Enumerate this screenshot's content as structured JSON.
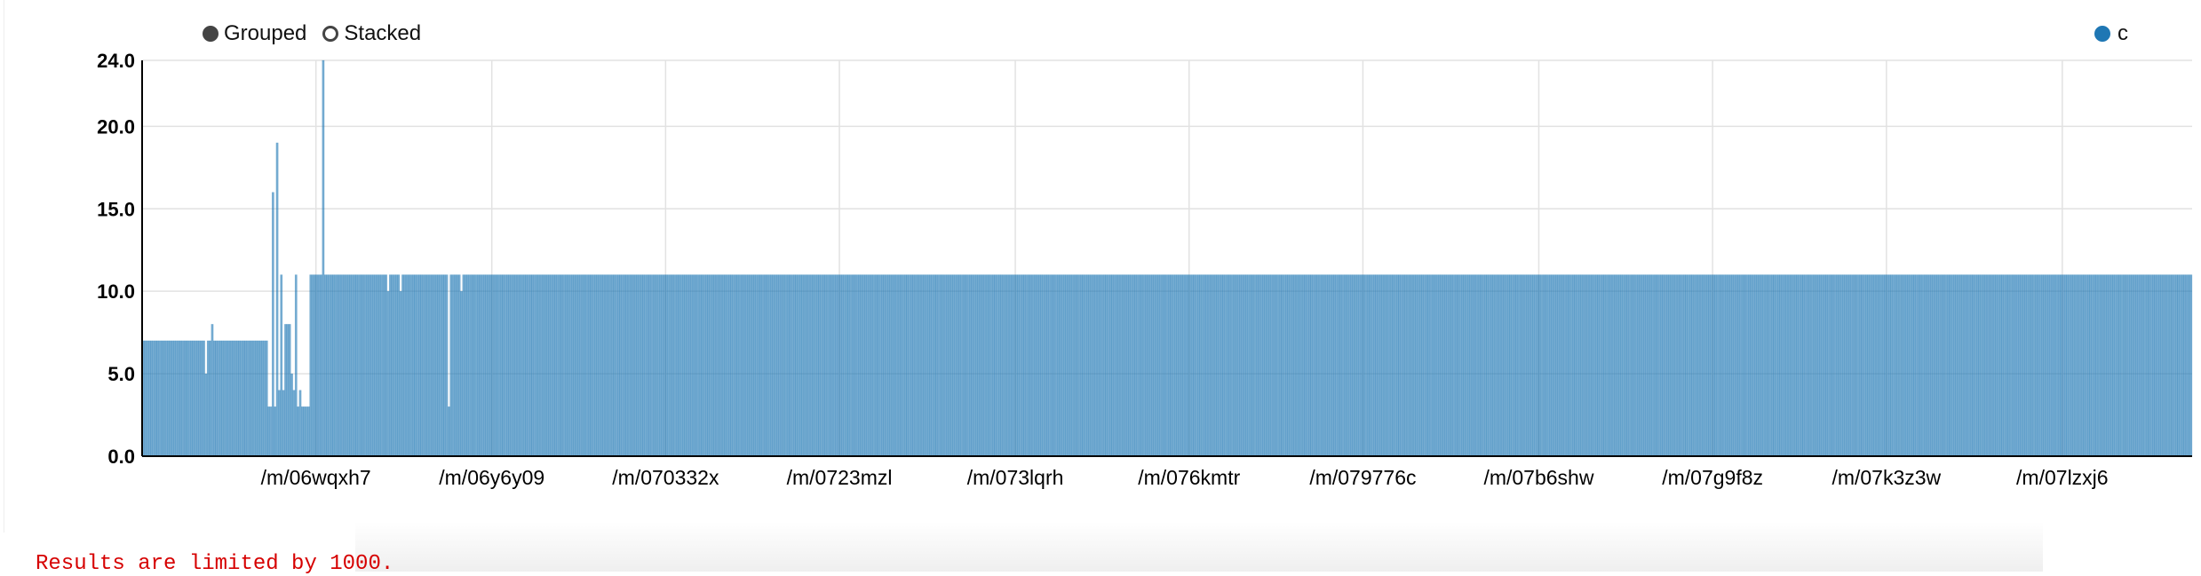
{
  "controls": {
    "grouped_label": "Grouped",
    "stacked_label": "Stacked",
    "selected": "Grouped"
  },
  "footer": {
    "note": "Results are limited by 1000."
  },
  "chart_data": {
    "type": "bar",
    "title": "",
    "xlabel": "",
    "ylabel": "",
    "ylim": [
      0,
      24
    ],
    "yticks": [
      "0.0",
      "5.0",
      "10.0",
      "15.0",
      "20.0",
      "24.0"
    ],
    "xtick_labels": [
      "/m/06wqxh7",
      "/m/06y6y09",
      "/m/070332x",
      "/m/0723mzl",
      "/m/073lqrh",
      "/m/076kmtr",
      "/m/079776c",
      "/m/07b6shw",
      "/m/07g9f8z",
      "/m/07k3z3w",
      "/m/07lzxj6"
    ],
    "grid": true,
    "legend_position": "top-right",
    "series": [
      {
        "name": "c",
        "color": "#1f77b4",
        "values": [
          7,
          7,
          7,
          7,
          7,
          7,
          7,
          7,
          7,
          7,
          7,
          7,
          7,
          7,
          7,
          7,
          7,
          7,
          7,
          7,
          7,
          7,
          7,
          7,
          7,
          7,
          7,
          7,
          7,
          7,
          5,
          7,
          7,
          8,
          7,
          7,
          7,
          7,
          7,
          7,
          7,
          7,
          7,
          7,
          7,
          7,
          7,
          7,
          7,
          7,
          7,
          7,
          7,
          7,
          7,
          7,
          7,
          7,
          7,
          7,
          3,
          3,
          16,
          3,
          19,
          4,
          11,
          4,
          8,
          8,
          8,
          5,
          4,
          11,
          3,
          4,
          3,
          3,
          3,
          3,
          11,
          11,
          11,
          11,
          11,
          11,
          24,
          11,
          11,
          11,
          11,
          11,
          11,
          11,
          11,
          11,
          11,
          11,
          11,
          11,
          11,
          11,
          11,
          11,
          11,
          11,
          11,
          11,
          11,
          11,
          11,
          11,
          11,
          11,
          11,
          11,
          11,
          10,
          11,
          11,
          11,
          11,
          11,
          10,
          11,
          11,
          11,
          11,
          11,
          11,
          11,
          11,
          11,
          11,
          11,
          11,
          11,
          11,
          11,
          11,
          11,
          11,
          11,
          11,
          11,
          11,
          3,
          11,
          11,
          11,
          11,
          11,
          10,
          11,
          11,
          11,
          11,
          11,
          11,
          11,
          11,
          11,
          11,
          11,
          11,
          11,
          11,
          11,
          11,
          11,
          11,
          11,
          11,
          11,
          11,
          11,
          11,
          11,
          11,
          11,
          11,
          11,
          11,
          11,
          11,
          11,
          11,
          11,
          11,
          11,
          11,
          11,
          11,
          11,
          11,
          11,
          11,
          11,
          11,
          11,
          11,
          11,
          11,
          11,
          11,
          11,
          11,
          11,
          11,
          11,
          11,
          11,
          11,
          11,
          11,
          11,
          11,
          11,
          11,
          11,
          11,
          11,
          11,
          11,
          11,
          11,
          11,
          11,
          11,
          11,
          11,
          11,
          11,
          11,
          11,
          11,
          11,
          11,
          11,
          11,
          11,
          11,
          11,
          11,
          11,
          11,
          11,
          11,
          11,
          11,
          11,
          11,
          11,
          11,
          11,
          11,
          11,
          11,
          11,
          11,
          11,
          11,
          11,
          11,
          11,
          11,
          11,
          11,
          11,
          11,
          11,
          11,
          11,
          11,
          11,
          11,
          11,
          11,
          11,
          11,
          11,
          11,
          11,
          11,
          11,
          11,
          11,
          11,
          11,
          11,
          11,
          11,
          11,
          11,
          11,
          11,
          11,
          11,
          11,
          11,
          11,
          11,
          11,
          11,
          11,
          11,
          11,
          11,
          11,
          11,
          11,
          11,
          11,
          11,
          11,
          11,
          11,
          11,
          11,
          11,
          11,
          11,
          11,
          11,
          11,
          11,
          11,
          11,
          11,
          11,
          11,
          11,
          11,
          11,
          11,
          11,
          11,
          11,
          11,
          11,
          11,
          11,
          11,
          11,
          11,
          11,
          11,
          11,
          11,
          11,
          11,
          11,
          11,
          11,
          11,
          11,
          11,
          11,
          11,
          11,
          11,
          11,
          11,
          11,
          11,
          11,
          11,
          11,
          11,
          11,
          11,
          11,
          11,
          11,
          11,
          11,
          11,
          11,
          11,
          11,
          11,
          11,
          11,
          11,
          11,
          11,
          11,
          11,
          11,
          11,
          11,
          11,
          11,
          11,
          11,
          11,
          11,
          11,
          11,
          11,
          11,
          11,
          11,
          11,
          11,
          11,
          11,
          11,
          11,
          11,
          11,
          11,
          11,
          11,
          11,
          11,
          11,
          11,
          11,
          11,
          11,
          11,
          11,
          11,
          11,
          11,
          11,
          11,
          11,
          11,
          11,
          11,
          11,
          11,
          11,
          11,
          11,
          11,
          11,
          11,
          11,
          11,
          11,
          11,
          11,
          11,
          11,
          11,
          11,
          11,
          11,
          11,
          11,
          11,
          11,
          11,
          11,
          11,
          11,
          11,
          11,
          11,
          11,
          11,
          11,
          11,
          11,
          11,
          11,
          11,
          11,
          11,
          11,
          11,
          11,
          11,
          11,
          11,
          11,
          11,
          11,
          11,
          11,
          11,
          11,
          11,
          11,
          11,
          11,
          11,
          11,
          11,
          11,
          11,
          11,
          11,
          11,
          11,
          11,
          11,
          11,
          11,
          11,
          11,
          11,
          11,
          11,
          11,
          11,
          11,
          11,
          11,
          11,
          11,
          11,
          11,
          11,
          11,
          11,
          11,
          11,
          11,
          11,
          11,
          11,
          11,
          11,
          11,
          11,
          11,
          11,
          11,
          11,
          11,
          11,
          11,
          11,
          11,
          11,
          11,
          11,
          11,
          11,
          11,
          11,
          11,
          11,
          11,
          11,
          11,
          11,
          11,
          11,
          11,
          11,
          11,
          11,
          11,
          11,
          11,
          11,
          11,
          11,
          11,
          11,
          11,
          11,
          11,
          11,
          11,
          11,
          11,
          11,
          11,
          11,
          11,
          11,
          11,
          11,
          11,
          11,
          11,
          11,
          11,
          11,
          11,
          11,
          11,
          11,
          11,
          11,
          11,
          11,
          11,
          11,
          11,
          11,
          11,
          11,
          11,
          11,
          11,
          11,
          11,
          11,
          11,
          11,
          11,
          11,
          11,
          11,
          11,
          11,
          11,
          11,
          11,
          11,
          11,
          11,
          11,
          11,
          11,
          11,
          11,
          11,
          11,
          11,
          11,
          11,
          11,
          11,
          11,
          11,
          11,
          11,
          11,
          11,
          11,
          11,
          11,
          11,
          11,
          11,
          11,
          11,
          11,
          11,
          11,
          11,
          11,
          11,
          11,
          11,
          11,
          11,
          11,
          11,
          11,
          11,
          11,
          11,
          11,
          11,
          11,
          11,
          11,
          11,
          11,
          11,
          11,
          11,
          11,
          11,
          11,
          11,
          11,
          11,
          11,
          11,
          11,
          11,
          11,
          11,
          11,
          11,
          11,
          11,
          11,
          11,
          11,
          11,
          11,
          11,
          11,
          11,
          11,
          11,
          11,
          11,
          11,
          11,
          11,
          11,
          11,
          11,
          11,
          11,
          11,
          11,
          11,
          11,
          11,
          11,
          11,
          11,
          11,
          11,
          11,
          11,
          11,
          11,
          11,
          11,
          11,
          11,
          11,
          11,
          11,
          11,
          11,
          11,
          11,
          11,
          11,
          11,
          11,
          11,
          11,
          11,
          11,
          11,
          11,
          11,
          11,
          11,
          11,
          11,
          11,
          11,
          11,
          11,
          11,
          11,
          11,
          11,
          11,
          11,
          11,
          11,
          11,
          11,
          11,
          11,
          11,
          11,
          11,
          11,
          11,
          11,
          11,
          11,
          11,
          11,
          11,
          11,
          11,
          11,
          11,
          11,
          11,
          11,
          11,
          11,
          11,
          11,
          11,
          11,
          11,
          11,
          11,
          11,
          11,
          11,
          11,
          11,
          11,
          11,
          11,
          11,
          11,
          11,
          11,
          11,
          11,
          11,
          11,
          11,
          11,
          11,
          11,
          11,
          11,
          11,
          11,
          11,
          11,
          11,
          11,
          11,
          11,
          11,
          11,
          11,
          11,
          11,
          11,
          11,
          11,
          11,
          11,
          11,
          11,
          11,
          11,
          11,
          11,
          11,
          11,
          11,
          11,
          11,
          11,
          11,
          11,
          11,
          11,
          11,
          11,
          11,
          11,
          11,
          11,
          11,
          11,
          11,
          11,
          11,
          11,
          11,
          11,
          11,
          11,
          11,
          11,
          11,
          11,
          11,
          11,
          11,
          11,
          11,
          11,
          11,
          11,
          11,
          11,
          11,
          11,
          11,
          11,
          11,
          11,
          11,
          11,
          11,
          11,
          11,
          11,
          11,
          11,
          11,
          11,
          11,
          11,
          11,
          11,
          11,
          11,
          11,
          11,
          11,
          11,
          11,
          11,
          11,
          11,
          11,
          11,
          11,
          11,
          11,
          11,
          11,
          11,
          11,
          11,
          11,
          11,
          11,
          11,
          11,
          11,
          11,
          11,
          11,
          11,
          11,
          11,
          11,
          11,
          11,
          11,
          11,
          11,
          11,
          11,
          11,
          11,
          11,
          11,
          11,
          11,
          11,
          11,
          11,
          11,
          11,
          11,
          11,
          11,
          11,
          11,
          11,
          11,
          11,
          11,
          11,
          11,
          11,
          11,
          11,
          11,
          11,
          11,
          11,
          11,
          11,
          11,
          11,
          11,
          11,
          11,
          11,
          11,
          11,
          11,
          11,
          11,
          11
        ]
      }
    ]
  }
}
